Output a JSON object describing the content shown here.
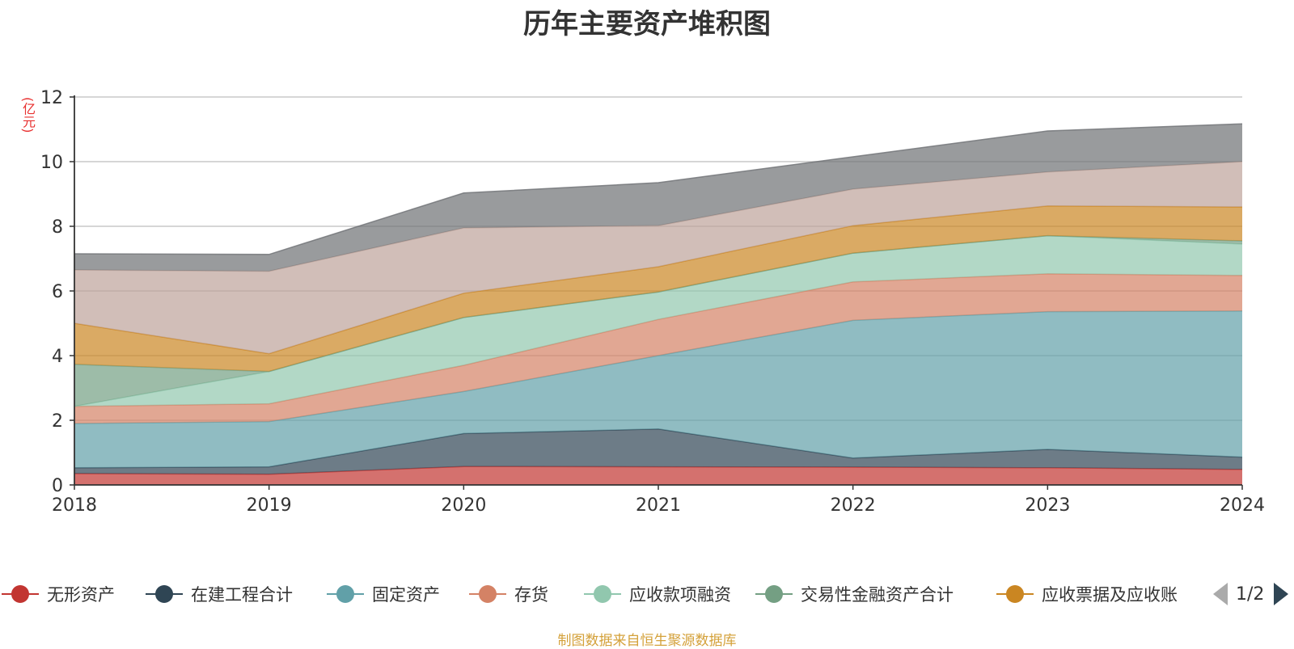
{
  "title": "历年主要资产堆积图",
  "unit": "(亿元)",
  "source": "制图数据来自恒生聚源数据库",
  "pager": {
    "text": "1/2"
  },
  "legend_visible": [
    "无形资产",
    "在建工程合计",
    "固定资产",
    "存货",
    "应收款项融资",
    "交易性金融资产合计",
    "应收票据及应收账"
  ],
  "chart_data": {
    "type": "area",
    "stacked": true,
    "x": [
      "2018",
      "2019",
      "2020",
      "2021",
      "2022",
      "2023",
      "2024"
    ],
    "ylim": [
      0,
      12
    ],
    "yticks": [
      0,
      2,
      4,
      6,
      8,
      10,
      12
    ],
    "grid": true,
    "legend_position": "bottom",
    "series": [
      {
        "name": "无形资产",
        "color": "#c23531",
        "values": [
          0.35,
          0.33,
          0.57,
          0.56,
          0.55,
          0.53,
          0.48
        ]
      },
      {
        "name": "在建工程合计",
        "color": "#2f4554",
        "values": [
          0.18,
          0.23,
          1.02,
          1.17,
          0.28,
          0.57,
          0.38
        ]
      },
      {
        "name": "固定资产",
        "color": "#61a0a8",
        "values": [
          1.37,
          1.4,
          1.3,
          2.27,
          4.26,
          4.26,
          4.52
        ]
      },
      {
        "name": "存货",
        "color": "#d48265",
        "values": [
          0.53,
          0.55,
          0.81,
          1.12,
          1.19,
          1.17,
          1.1
        ]
      },
      {
        "name": "应收款项融资",
        "color": "#91c7ae",
        "values": [
          0.0,
          1.0,
          1.48,
          0.85,
          0.89,
          1.18,
          0.97
        ]
      },
      {
        "name": "交易性金融资产合计",
        "color": "#749f83",
        "values": [
          1.3,
          0.0,
          0.0,
          0.0,
          0.0,
          0.0,
          0.1
        ]
      },
      {
        "name": "应收票据及应收账",
        "color": "#ca8622",
        "values": [
          1.27,
          0.55,
          0.75,
          0.78,
          0.85,
          0.92,
          1.05
        ]
      },
      {
        "name": "",
        "color": "#bda29a",
        "values": [
          1.65,
          2.55,
          2.02,
          1.27,
          1.13,
          1.05,
          1.4
        ]
      },
      {
        "name": "",
        "color": "#6e7074",
        "values": [
          0.5,
          0.52,
          1.08,
          1.33,
          1.0,
          1.27,
          1.17
        ]
      }
    ]
  }
}
